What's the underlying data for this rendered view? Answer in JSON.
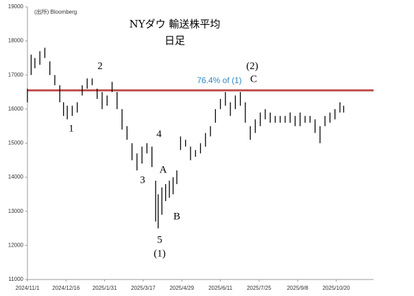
{
  "chart_data": {
    "type": "hilo",
    "title": "NYダウ 輸送株平均",
    "subtitle": "日足",
    "source": "(出所) Bloomberg",
    "x": [
      0,
      3,
      6,
      10,
      14,
      18,
      22,
      26,
      29,
      32,
      36,
      40,
      44,
      48,
      52,
      56,
      60,
      64,
      68,
      72,
      76,
      80,
      84,
      88,
      92,
      96,
      100,
      103,
      105,
      108,
      111,
      114,
      117,
      120,
      123,
      127,
      131,
      135,
      139,
      143,
      147,
      151,
      155,
      159,
      163,
      167,
      171,
      175,
      179,
      183,
      187,
      191,
      195,
      199,
      203,
      207,
      211,
      215,
      219,
      223,
      227,
      231,
      235,
      239,
      243,
      247,
      251,
      254
    ],
    "high": [
      16600,
      17600,
      17500,
      17700,
      17800,
      17400,
      17000,
      16700,
      16200,
      16100,
      16100,
      16200,
      16700,
      16900,
      16900,
      16600,
      16500,
      16400,
      16800,
      16500,
      16000,
      15500,
      15000,
      14700,
      14900,
      15000,
      14900,
      13900,
      13500,
      13700,
      13800,
      13900,
      14000,
      14200,
      15200,
      15100,
      14900,
      14800,
      15000,
      15300,
      15500,
      16000,
      16300,
      16500,
      16200,
      16400,
      16500,
      16200,
      15500,
      15700,
      15900,
      16000,
      15900,
      15800,
      15800,
      15800,
      15900,
      15800,
      15900,
      15800,
      15800,
      15700,
      15500,
      15800,
      15900,
      16000,
      16200,
      16100
    ],
    "low": [
      16200,
      17000,
      17200,
      17300,
      17500,
      17000,
      16700,
      16200,
      15800,
      15700,
      15800,
      15900,
      16400,
      16600,
      16700,
      16300,
      16000,
      16100,
      16500,
      16000,
      15400,
      15100,
      14500,
      14200,
      14400,
      14700,
      14300,
      12700,
      12500,
      12900,
      13300,
      13400,
      13500,
      13800,
      14800,
      14900,
      14500,
      14600,
      14700,
      14900,
      15200,
      15600,
      16000,
      16100,
      15800,
      16000,
      16100,
      15600,
      15100,
      15300,
      15500,
      15700,
      15600,
      15600,
      15600,
      15600,
      15600,
      15500,
      15500,
      15600,
      15600,
      15300,
      15000,
      15500,
      15600,
      15700,
      15900,
      15900
    ],
    "color": "#000000",
    "xlim": [
      0,
      278
    ],
    "xticks": [
      {
        "value": 0,
        "label": "2024/11/1"
      },
      {
        "value": 31,
        "label": "2024/12/16"
      },
      {
        "value": 62,
        "label": "2025/1/31"
      },
      {
        "value": 93,
        "label": "2025/3/17"
      },
      {
        "value": 124,
        "label": "2025/4/29"
      },
      {
        "value": 155,
        "label": "2025/6/11"
      },
      {
        "value": 186,
        "label": "2025/7/25"
      },
      {
        "value": 217,
        "label": "2025/9/8"
      },
      {
        "value": 248,
        "label": "2025/10/20"
      }
    ],
    "ylim": [
      11000,
      19000
    ],
    "yticks": [
      11000,
      12000,
      13000,
      14000,
      15000,
      16000,
      17000,
      18000,
      19000
    ],
    "reference_line": {
      "value": 16550,
      "label": "76.4% of (1)",
      "color": "#c0504d",
      "label_color": "#2e86c1"
    },
    "annotations": [
      "1",
      "2",
      "3",
      "4",
      "5",
      "(1)",
      "A",
      "B",
      "(2)",
      "C"
    ]
  }
}
